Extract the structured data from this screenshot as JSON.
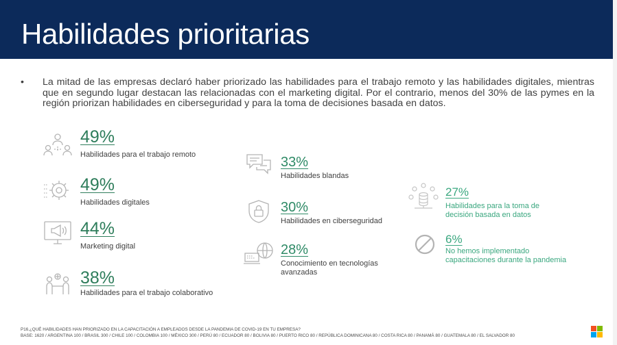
{
  "header": {
    "title": "Habilidades prioritarias"
  },
  "intro": {
    "bullet": "•",
    "text": "La mitad de las empresas declaró haber priorizado las habilidades para el trabajo remoto y las habilidades digitales, mientras que en segundo lugar destacan las relacionadas con el marketing digital. Por el contrario, menos del 30% de las pymes en la región priorizan habilidades en ciberseguridad y para la toma de decisiones basada en datos."
  },
  "stats": [
    {
      "icon": "remote-team-icon",
      "percent": "49%",
      "label": "Habilidades para el trabajo remoto"
    },
    {
      "icon": "digital-gears-icon",
      "percent": "49%",
      "label": "Habilidades digitales"
    },
    {
      "icon": "megaphone-monitor-icon",
      "percent": "44%",
      "label": "Marketing digital"
    },
    {
      "icon": "collaboration-people-icon",
      "percent": "38%",
      "label": "Habilidades para el trabajo colaborativo"
    },
    {
      "icon": "chat-bubbles-icon",
      "percent": "33%",
      "label": "Habilidades blandas"
    },
    {
      "icon": "shield-lock-icon",
      "percent": "30%",
      "label": "Habilidades en ciberseguridad"
    },
    {
      "icon": "globe-laptop-icon",
      "percent": "28%",
      "label": "Conocimiento en tecnologías avanzadas"
    },
    {
      "icon": "data-decision-icon",
      "percent": "27%",
      "label": "Habilidades para la toma de decisión basada en datos"
    },
    {
      "icon": "prohibited-icon",
      "percent": "6%",
      "label": "No hemos implementado capacitaciones durante la pandemia"
    }
  ],
  "footer": {
    "question": "P16.¿QUÉ HABILIDADES HAN PRIORIZADO EN LA CAPACITACIÓN A EMPLEADOS DESDE LA PANDEMIA DE COVID-19 EN TU EMPRESA?",
    "base": "BASE: 1620 / ARGENTINA 100 / BRASIL 300 / CHILE 100 / COLOMBIA 100 / MÉXICO 300 / PERÚ 80 / ECUADOR 80 / BOLIVIA 80 / PUERTO RICO 80 / REPÚBLICA DOMINICANA 80 / COSTA RICA 80 / PANAMÁ 80 / GUATEMALA 80 / EL SALVADOR 80"
  },
  "colors": {
    "header_bg": "#0c2a5a",
    "accent_dark": "#2e7d5b",
    "accent_light": "#3aa77f",
    "ms_red": "#f25022",
    "ms_green": "#7fba00",
    "ms_blue": "#00a4ef",
    "ms_yellow": "#ffb900"
  }
}
